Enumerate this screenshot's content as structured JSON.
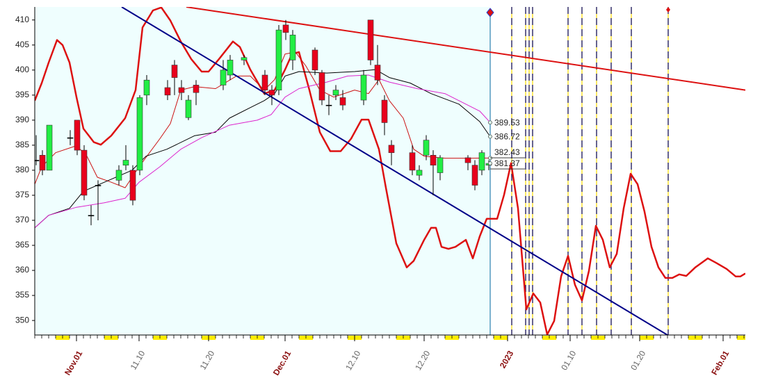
{
  "chart_data": {
    "type": "candlestick",
    "xlim": [
      0,
      102.2
    ],
    "ylim": [
      347.1,
      412.6
    ],
    "yticks": [
      350,
      355,
      360,
      365,
      370,
      375,
      380,
      385,
      390,
      395,
      400,
      405,
      410
    ],
    "xticks": [
      {
        "value": 6,
        "label": "Nov.01",
        "emphasis": true
      },
      {
        "value": 15,
        "label": "11.10",
        "emphasis": false
      },
      {
        "value": 25,
        "label": "11.20",
        "emphasis": false
      },
      {
        "value": 36,
        "label": "Dec.01",
        "emphasis": true
      },
      {
        "value": 46,
        "label": "12.10",
        "emphasis": false
      },
      {
        "value": 56,
        "label": "12.20",
        "emphasis": false
      },
      {
        "value": 68,
        "label": "2023",
        "emphasis": true
      },
      {
        "value": 77,
        "label": "01.10",
        "emphasis": false
      },
      {
        "value": 87,
        "label": "01.20",
        "emphasis": false
      },
      {
        "value": 99,
        "label": "Feb.01",
        "emphasis": true
      }
    ],
    "up_color": "#22ee44",
    "down_color": "#e8001c",
    "candles": {
      "x": [
        0.2,
        1.1,
        2.1,
        5.1,
        6.1,
        7.1,
        8.1,
        9.1,
        12.1,
        13.1,
        14.1,
        15.1,
        16.1,
        19.1,
        20.1,
        21.1,
        22.1,
        23.2,
        27.1,
        28.1,
        30.1,
        33.1,
        34.1,
        35.1,
        36.1,
        37.1,
        40.3,
        41.3,
        42.3,
        43.3,
        44.3,
        47.3,
        48.3,
        49.3,
        50.3,
        51.3,
        54.3,
        55.3,
        56.3,
        57.3,
        58.3,
        62.3,
        63.3,
        64.3,
        65.3
      ],
      "open": [
        382,
        383,
        380,
        386.5,
        390,
        384,
        371,
        377,
        378,
        381,
        380,
        380,
        395,
        396.5,
        401,
        396.5,
        390.5,
        397,
        397,
        399,
        402,
        399,
        396,
        396,
        409,
        402,
        404,
        399.5,
        393,
        395,
        394.5,
        394,
        410,
        401,
        394,
        385,
        383.5,
        379,
        383,
        383,
        379.5,
        382.5,
        381,
        380,
        381
      ],
      "high": [
        387,
        384,
        389,
        388,
        390,
        385,
        373,
        378,
        381,
        385,
        381,
        395,
        399,
        398,
        402,
        398,
        395,
        398,
        402,
        403,
        403,
        400,
        397,
        409,
        410,
        408,
        404.5,
        400,
        395,
        397,
        396,
        400,
        410,
        405,
        395,
        386,
        385,
        381,
        387,
        384,
        383,
        383,
        382,
        384,
        382
      ],
      "low": [
        381,
        379,
        380,
        385,
        383,
        374,
        369,
        370,
        377,
        380,
        373,
        379,
        393,
        394,
        395,
        394,
        390,
        393,
        396,
        398,
        401,
        395,
        393,
        395,
        406,
        400,
        399,
        393,
        391,
        394,
        392,
        393,
        401,
        397,
        387,
        381,
        379,
        378,
        382,
        375,
        378,
        380,
        376,
        379,
        380
      ],
      "close": [
        382,
        380,
        389,
        386.5,
        384,
        375,
        371,
        377,
        380,
        382,
        374,
        394.5,
        398,
        395,
        398.5,
        395.5,
        394,
        395.5,
        400,
        402,
        402.5,
        396,
        395,
        408,
        407.5,
        407,
        400,
        394,
        393,
        396,
        393,
        399,
        402,
        398,
        389.5,
        383.5,
        380,
        380,
        386,
        381,
        382.5,
        381.5,
        377,
        383.5,
        381.37
      ]
    },
    "lines": [
      {
        "color": "#dd1111",
        "width": 2.5,
        "x": [
          0,
          1,
          2,
          3.2,
          4,
          5,
          6,
          7,
          8.5,
          9.5,
          11,
          13,
          14.5,
          15.5,
          17,
          18.2,
          19.5,
          21,
          22.5,
          24,
          25,
          26.5,
          28.5,
          29.5,
          31,
          33,
          34.5,
          36,
          37,
          38,
          39.5,
          41,
          42.5,
          44,
          45.5,
          47,
          48,
          49.5,
          50.5,
          52,
          53.5,
          54.5,
          56,
          57,
          57.7,
          58.5,
          59.5,
          60.5,
          62,
          63,
          64,
          65,
          66.5,
          67.5,
          68.5,
          69.5,
          70.7,
          71.7,
          72.7,
          73.7,
          74.7,
          75.7,
          76.7,
          77.7,
          78.7,
          79.7,
          80.7,
          81.7,
          82.7,
          83.7,
          84.7,
          85.7,
          86.7,
          87.7,
          88.7,
          89.7,
          90.7,
          91.7,
          92.7,
          93.7,
          95,
          96.8,
          98,
          99.5,
          100.8,
          101.5,
          102.2
        ],
        "values": [
          393.9,
          397.4,
          401.5,
          406,
          405,
          401.5,
          394.6,
          388.3,
          385.6,
          385.1,
          386.9,
          390.4,
          396,
          408.5,
          411.9,
          412.5,
          409.9,
          405.7,
          402.2,
          399.7,
          399.7,
          402.2,
          405.7,
          404.6,
          400.1,
          395.3,
          396,
          400.1,
          403.2,
          403.6,
          396,
          387.6,
          383.8,
          383.8,
          386.3,
          390.1,
          390.1,
          384.2,
          376.5,
          365.4,
          360.6,
          361.9,
          366.1,
          368.5,
          368.5,
          364.7,
          364.3,
          364.7,
          366.1,
          362.4,
          366.8,
          370.3,
          370.3,
          375.1,
          381.4,
          372.4,
          352.2,
          355.4,
          353.6,
          347.2,
          349.9,
          358.8,
          362.9,
          357.1,
          354,
          359.9,
          368.9,
          366.1,
          360.6,
          363.3,
          372.4,
          379.3,
          377.2,
          371.7,
          364.7,
          360.6,
          358.5,
          358.5,
          359.2,
          358.9,
          360.6,
          362.4,
          361.5,
          360.3,
          358.8,
          358.8,
          359.4
        ]
      },
      {
        "color": "#cc1111",
        "width": 1,
        "x": [
          0,
          1,
          3,
          6,
          7.5,
          9,
          11,
          13,
          15,
          18,
          19.5,
          21,
          23,
          26,
          29,
          31,
          33,
          34.5,
          36,
          37.5,
          39,
          41,
          43,
          46,
          48,
          49.5,
          51,
          53,
          54.5,
          56,
          59,
          62,
          65.5
        ],
        "values": [
          377.2,
          380.7,
          383.5,
          384.9,
          382.8,
          378.6,
          377.6,
          376.5,
          380.7,
          386.3,
          389.3,
          396,
          396.7,
          396.3,
          398.8,
          398.8,
          396,
          398.1,
          403.2,
          403.6,
          400.8,
          396,
          394.6,
          396,
          395.3,
          398.1,
          393.9,
          390.4,
          384.2,
          382.8,
          382.4,
          382.4,
          382.43
        ]
      },
      {
        "color": "#000000",
        "width": 1,
        "x": [
          0,
          2,
          5,
          7,
          10,
          14,
          16,
          19,
          23,
          26,
          28,
          31,
          33,
          34.5,
          36,
          38,
          42,
          46,
          49,
          51,
          54,
          57,
          61,
          64,
          65.5
        ],
        "values": [
          368.5,
          371,
          372.4,
          375.8,
          377.6,
          380,
          382.8,
          384.2,
          386.9,
          387.6,
          390.4,
          392.5,
          393.9,
          395.3,
          398.8,
          399.7,
          399.4,
          399.7,
          400.1,
          398.5,
          397.4,
          395.3,
          393.2,
          389.7,
          386.72
        ]
      },
      {
        "color": "#dd22cc",
        "width": 1,
        "x": [
          0,
          2,
          6,
          10,
          13,
          15,
          18,
          21,
          24,
          28,
          32,
          34,
          36,
          38,
          42,
          45,
          48,
          51,
          55,
          59,
          64,
          65.5
        ],
        "values": [
          368.5,
          371,
          372.6,
          373.5,
          374.4,
          377.6,
          380.7,
          384.2,
          386.5,
          389,
          390,
          391.1,
          394.6,
          396.3,
          397.6,
          398.8,
          399,
          397.6,
          396.3,
          395.3,
          391.8,
          389.53
        ]
      }
    ],
    "trendlines": [
      {
        "color": "#000088",
        "width": 2,
        "x": [
          12.5,
          91
        ],
        "values": [
          412.6,
          347.1
        ]
      },
      {
        "color": "#dd1111",
        "width": 2,
        "x": [
          21.8,
          102.2
        ],
        "values": [
          412.6,
          396
        ]
      }
    ],
    "now_line": {
      "x": 65.5,
      "color": "#2a7fb0",
      "background": "#effefe"
    },
    "cycle_lines": {
      "x": [
        68.6,
        70.6,
        71.1,
        71.6,
        76.7,
        78.7,
        80.8,
        82.9,
        85.8,
        91.1
      ],
      "color": "#000066",
      "gap_color": "#ffdd00"
    },
    "last_values": [
      389.53,
      386.72,
      382.43,
      381.37
    ]
  }
}
